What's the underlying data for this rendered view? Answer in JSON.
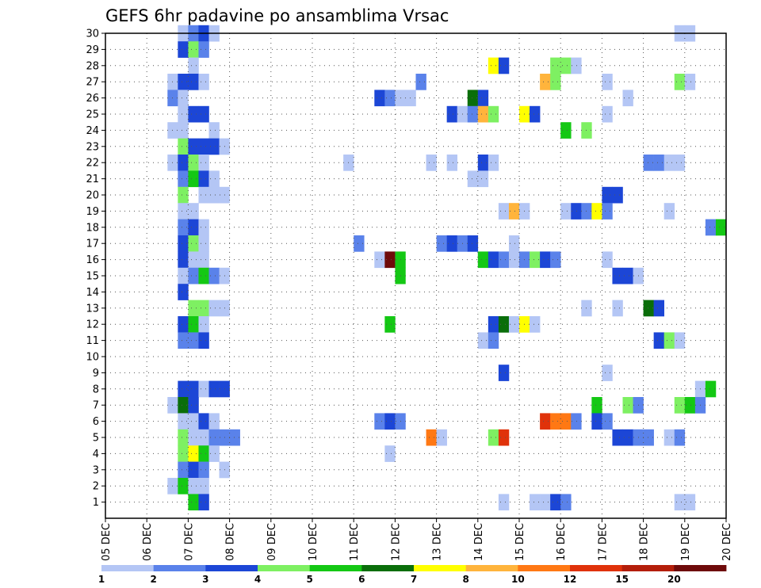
{
  "chart_data": {
    "type": "heatmap",
    "title": "GEFS 6hr padavine po ansamblima Vrsac",
    "xlabel": "",
    "ylabel": "",
    "x_ticks": [
      "05 DEC",
      "06 DEC",
      "07 DEC",
      "08 DEC",
      "09 DEC",
      "10 DEC",
      "11 DEC",
      "12 DEC",
      "13 DEC",
      "14 DEC",
      "15 DEC",
      "16 DEC",
      "17 DEC",
      "18 DEC",
      "19 DEC",
      "20 DEC"
    ],
    "x_range": [
      0,
      60
    ],
    "y_ticks": [
      "1",
      "2",
      "3",
      "4",
      "5",
      "6",
      "7",
      "8",
      "9",
      "10",
      "11",
      "12",
      "13",
      "14",
      "15",
      "16",
      "17",
      "18",
      "19",
      "20",
      "21",
      "22",
      "23",
      "24",
      "25",
      "26",
      "27",
      "28",
      "29",
      "30"
    ],
    "y_range": [
      0,
      30
    ],
    "grid": true,
    "colorbar": {
      "labels": [
        "1",
        "2",
        "3",
        "4",
        "5",
        "6",
        "7",
        "8",
        "10",
        "12",
        "15",
        "20"
      ],
      "colors": [
        "#b4c6f5",
        "#5a82ea",
        "#1c46d6",
        "#7ef062",
        "#14c814",
        "#0a6e0a",
        "#ffff00",
        "#ffb43c",
        "#ff7814",
        "#e0320a",
        "#b41e0a",
        "#6e0a0a"
      ]
    },
    "cells": [
      [
        8,
        30,
        1
      ],
      [
        9,
        30,
        2
      ],
      [
        10,
        30,
        3
      ],
      [
        11,
        30,
        1
      ],
      [
        56,
        30,
        1
      ],
      [
        57,
        30,
        1
      ],
      [
        8,
        29,
        3
      ],
      [
        9,
        29,
        4
      ],
      [
        10,
        29,
        2
      ],
      [
        9,
        28,
        1
      ],
      [
        38,
        28,
        7
      ],
      [
        39,
        28,
        3
      ],
      [
        44,
        28,
        4
      ],
      [
        45,
        28,
        4
      ],
      [
        46,
        28,
        1
      ],
      [
        7,
        27,
        1
      ],
      [
        8,
        27,
        3
      ],
      [
        9,
        27,
        3
      ],
      [
        10,
        27,
        1
      ],
      [
        31,
        27,
        2
      ],
      [
        43,
        27,
        8
      ],
      [
        44,
        27,
        4
      ],
      [
        49,
        27,
        1
      ],
      [
        56,
        27,
        4
      ],
      [
        57,
        27,
        1
      ],
      [
        7,
        26,
        2
      ],
      [
        8,
        26,
        1
      ],
      [
        27,
        26,
        3
      ],
      [
        28,
        26,
        2
      ],
      [
        29,
        26,
        1
      ],
      [
        30,
        26,
        1
      ],
      [
        36,
        26,
        6
      ],
      [
        37,
        26,
        3
      ],
      [
        51,
        26,
        1
      ],
      [
        8,
        25,
        1
      ],
      [
        9,
        25,
        3
      ],
      [
        10,
        25,
        3
      ],
      [
        34,
        25,
        3
      ],
      [
        35,
        25,
        1
      ],
      [
        36,
        25,
        2
      ],
      [
        37,
        25,
        8
      ],
      [
        38,
        25,
        4
      ],
      [
        41,
        25,
        7
      ],
      [
        42,
        25,
        3
      ],
      [
        49,
        25,
        1
      ],
      [
        7,
        24,
        1
      ],
      [
        8,
        24,
        1
      ],
      [
        11,
        24,
        1
      ],
      [
        45,
        24,
        5
      ],
      [
        47,
        24,
        4
      ],
      [
        8,
        23,
        4
      ],
      [
        9,
        23,
        3
      ],
      [
        10,
        23,
        3
      ],
      [
        11,
        23,
        3
      ],
      [
        12,
        23,
        1
      ],
      [
        7,
        22,
        1
      ],
      [
        8,
        22,
        3
      ],
      [
        9,
        22,
        4
      ],
      [
        10,
        22,
        1
      ],
      [
        24,
        22,
        1
      ],
      [
        32,
        22,
        1
      ],
      [
        34,
        22,
        1
      ],
      [
        37,
        22,
        3
      ],
      [
        38,
        22,
        1
      ],
      [
        53,
        22,
        2
      ],
      [
        54,
        22,
        2
      ],
      [
        55,
        22,
        1
      ],
      [
        56,
        22,
        1
      ],
      [
        8,
        21,
        2
      ],
      [
        9,
        21,
        5
      ],
      [
        10,
        21,
        3
      ],
      [
        11,
        21,
        1
      ],
      [
        36,
        21,
        1
      ],
      [
        37,
        21,
        1
      ],
      [
        8,
        20,
        4
      ],
      [
        10,
        20,
        1
      ],
      [
        11,
        20,
        1
      ],
      [
        12,
        20,
        1
      ],
      [
        49,
        20,
        3
      ],
      [
        50,
        20,
        3
      ],
      [
        8,
        19,
        1
      ],
      [
        9,
        19,
        1
      ],
      [
        39,
        19,
        1
      ],
      [
        40,
        19,
        8
      ],
      [
        41,
        19,
        1
      ],
      [
        45,
        19,
        1
      ],
      [
        46,
        19,
        3
      ],
      [
        47,
        19,
        2
      ],
      [
        48,
        19,
        7
      ],
      [
        49,
        19,
        2
      ],
      [
        55,
        19,
        1
      ],
      [
        8,
        18,
        2
      ],
      [
        9,
        18,
        3
      ],
      [
        10,
        18,
        1
      ],
      [
        59,
        18,
        2
      ],
      [
        60,
        18,
        5
      ],
      [
        8,
        17,
        3
      ],
      [
        9,
        17,
        4
      ],
      [
        10,
        17,
        1
      ],
      [
        25,
        17,
        2
      ],
      [
        33,
        17,
        2
      ],
      [
        34,
        17,
        3
      ],
      [
        35,
        17,
        2
      ],
      [
        36,
        17,
        3
      ],
      [
        40,
        17,
        1
      ],
      [
        8,
        16,
        3
      ],
      [
        9,
        16,
        1
      ],
      [
        10,
        16,
        1
      ],
      [
        27,
        16,
        1
      ],
      [
        28,
        16,
        12
      ],
      [
        29,
        16,
        5
      ],
      [
        37,
        16,
        5
      ],
      [
        38,
        16,
        3
      ],
      [
        39,
        16,
        2
      ],
      [
        40,
        16,
        1
      ],
      [
        41,
        16,
        2
      ],
      [
        42,
        16,
        4
      ],
      [
        43,
        16,
        3
      ],
      [
        44,
        16,
        2
      ],
      [
        49,
        16,
        1
      ],
      [
        8,
        15,
        1
      ],
      [
        9,
        15,
        2
      ],
      [
        10,
        15,
        5
      ],
      [
        11,
        15,
        2
      ],
      [
        12,
        15,
        1
      ],
      [
        29,
        15,
        5
      ],
      [
        50,
        15,
        3
      ],
      [
        51,
        15,
        3
      ],
      [
        52,
        15,
        1
      ],
      [
        8,
        14,
        3
      ],
      [
        9,
        13,
        4
      ],
      [
        10,
        13,
        4
      ],
      [
        11,
        13,
        1
      ],
      [
        12,
        13,
        1
      ],
      [
        47,
        13,
        1
      ],
      [
        50,
        13,
        1
      ],
      [
        53,
        13,
        6
      ],
      [
        54,
        13,
        3
      ],
      [
        8,
        12,
        3
      ],
      [
        9,
        12,
        5
      ],
      [
        10,
        12,
        1
      ],
      [
        28,
        12,
        5
      ],
      [
        38,
        12,
        3
      ],
      [
        39,
        12,
        6
      ],
      [
        40,
        12,
        1
      ],
      [
        41,
        12,
        7
      ],
      [
        42,
        12,
        1
      ],
      [
        8,
        11,
        2
      ],
      [
        9,
        11,
        2
      ],
      [
        10,
        11,
        3
      ],
      [
        37,
        11,
        1
      ],
      [
        38,
        11,
        2
      ],
      [
        54,
        11,
        3
      ],
      [
        55,
        11,
        4
      ],
      [
        56,
        11,
        1
      ],
      [
        39,
        9,
        3
      ],
      [
        49,
        9,
        1
      ],
      [
        8,
        8,
        3
      ],
      [
        9,
        8,
        3
      ],
      [
        10,
        8,
        1
      ],
      [
        11,
        8,
        3
      ],
      [
        12,
        8,
        3
      ],
      [
        58,
        8,
        1
      ],
      [
        59,
        8,
        5
      ],
      [
        7,
        7,
        1
      ],
      [
        8,
        7,
        6
      ],
      [
        9,
        7,
        3
      ],
      [
        48,
        7,
        5
      ],
      [
        51,
        7,
        4
      ],
      [
        52,
        7,
        2
      ],
      [
        56,
        7,
        4
      ],
      [
        57,
        7,
        5
      ],
      [
        58,
        7,
        2
      ],
      [
        8,
        6,
        1
      ],
      [
        9,
        6,
        1
      ],
      [
        10,
        6,
        3
      ],
      [
        11,
        6,
        1
      ],
      [
        27,
        6,
        2
      ],
      [
        28,
        6,
        3
      ],
      [
        29,
        6,
        2
      ],
      [
        43,
        6,
        10
      ],
      [
        44,
        6,
        9
      ],
      [
        45,
        6,
        9
      ],
      [
        46,
        6,
        2
      ],
      [
        48,
        6,
        3
      ],
      [
        49,
        6,
        2
      ],
      [
        8,
        5,
        4
      ],
      [
        9,
        5,
        1
      ],
      [
        10,
        5,
        1
      ],
      [
        11,
        5,
        2
      ],
      [
        12,
        5,
        2
      ],
      [
        13,
        5,
        2
      ],
      [
        32,
        5,
        9
      ],
      [
        33,
        5,
        1
      ],
      [
        38,
        5,
        4
      ],
      [
        39,
        5,
        10
      ],
      [
        50,
        5,
        3
      ],
      [
        51,
        5,
        3
      ],
      [
        52,
        5,
        2
      ],
      [
        53,
        5,
        2
      ],
      [
        55,
        5,
        1
      ],
      [
        56,
        5,
        2
      ],
      [
        8,
        4,
        4
      ],
      [
        9,
        4,
        7
      ],
      [
        10,
        4,
        5
      ],
      [
        11,
        4,
        1
      ],
      [
        28,
        4,
        1
      ],
      [
        8,
        3,
        2
      ],
      [
        9,
        3,
        3
      ],
      [
        10,
        3,
        2
      ],
      [
        12,
        3,
        1
      ],
      [
        7,
        2,
        1
      ],
      [
        8,
        2,
        5
      ],
      [
        9,
        2,
        1
      ],
      [
        10,
        2,
        1
      ],
      [
        9,
        1,
        5
      ],
      [
        10,
        1,
        3
      ],
      [
        39,
        1,
        1
      ],
      [
        42,
        1,
        1
      ],
      [
        43,
        1,
        1
      ],
      [
        44,
        1,
        3
      ],
      [
        45,
        1,
        2
      ],
      [
        56,
        1,
        1
      ],
      [
        57,
        1,
        1
      ]
    ]
  }
}
